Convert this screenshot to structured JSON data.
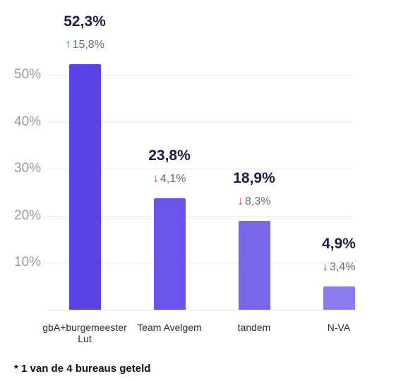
{
  "chart_data": {
    "type": "bar",
    "categories": [
      "gbA+burgemeester Lut",
      "Team Avelgem",
      "tandem",
      "N-VA"
    ],
    "values": [
      52.3,
      23.8,
      18.9,
      4.9
    ],
    "value_labels": [
      "52,3%",
      "23,8%",
      "18,9%",
      "4,9%"
    ],
    "changes": [
      {
        "direction": "up",
        "label": "15,8%"
      },
      {
        "direction": "down",
        "label": "4,1%"
      },
      {
        "direction": "down",
        "label": "8,3%"
      },
      {
        "direction": "down",
        "label": "3,4%"
      }
    ],
    "yticks": [
      10,
      20,
      30,
      40,
      50
    ],
    "ytick_labels": [
      "10%",
      "20%",
      "30%",
      "40%",
      "50%"
    ],
    "ylim": [
      0,
      52.3
    ],
    "grid": true,
    "colors": [
      "#5a43e6",
      "#6a55ea",
      "#7a66ec",
      "#8c7bf0"
    ],
    "footnote": "* 1 van de 4 bureaus geteld"
  }
}
